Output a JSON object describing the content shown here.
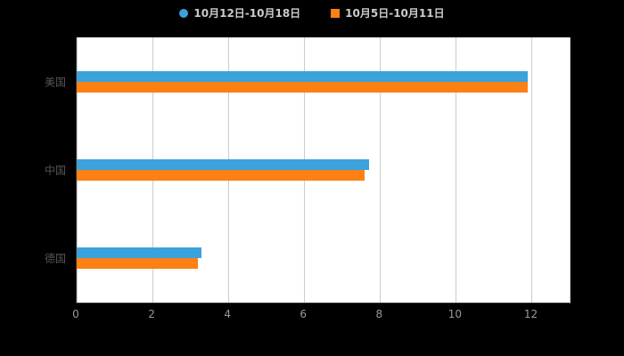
{
  "background_color": "#000000",
  "plot_background_color": "#ffffff",
  "grid_color": "#cccccc",
  "axis_line_color": "#333333",
  "legend": [
    {
      "label": "10月12日-10月18日",
      "color": "#3BA2DB",
      "marker": "circle"
    },
    {
      "label": "10月5日-10月11日",
      "color": "#FC8014",
      "marker": "square"
    }
  ],
  "chart_data": {
    "type": "bar",
    "orientation": "horizontal",
    "title": "",
    "xlabel": "",
    "ylabel": "",
    "categories": [
      "美国",
      "中国",
      "德国"
    ],
    "series": [
      {
        "name": "10月12日-10月18日",
        "color": "#3BA2DB",
        "values": [
          11.9,
          7.7,
          3.3
        ]
      },
      {
        "name": "10月5日-10月11日",
        "color": "#FC8014",
        "values": [
          11.9,
          7.6,
          3.2
        ]
      }
    ],
    "x_ticks": [
      0,
      2,
      4,
      6,
      8,
      10,
      12
    ],
    "xlim": [
      0,
      13
    ],
    "grid": true,
    "legend_position": "top"
  }
}
